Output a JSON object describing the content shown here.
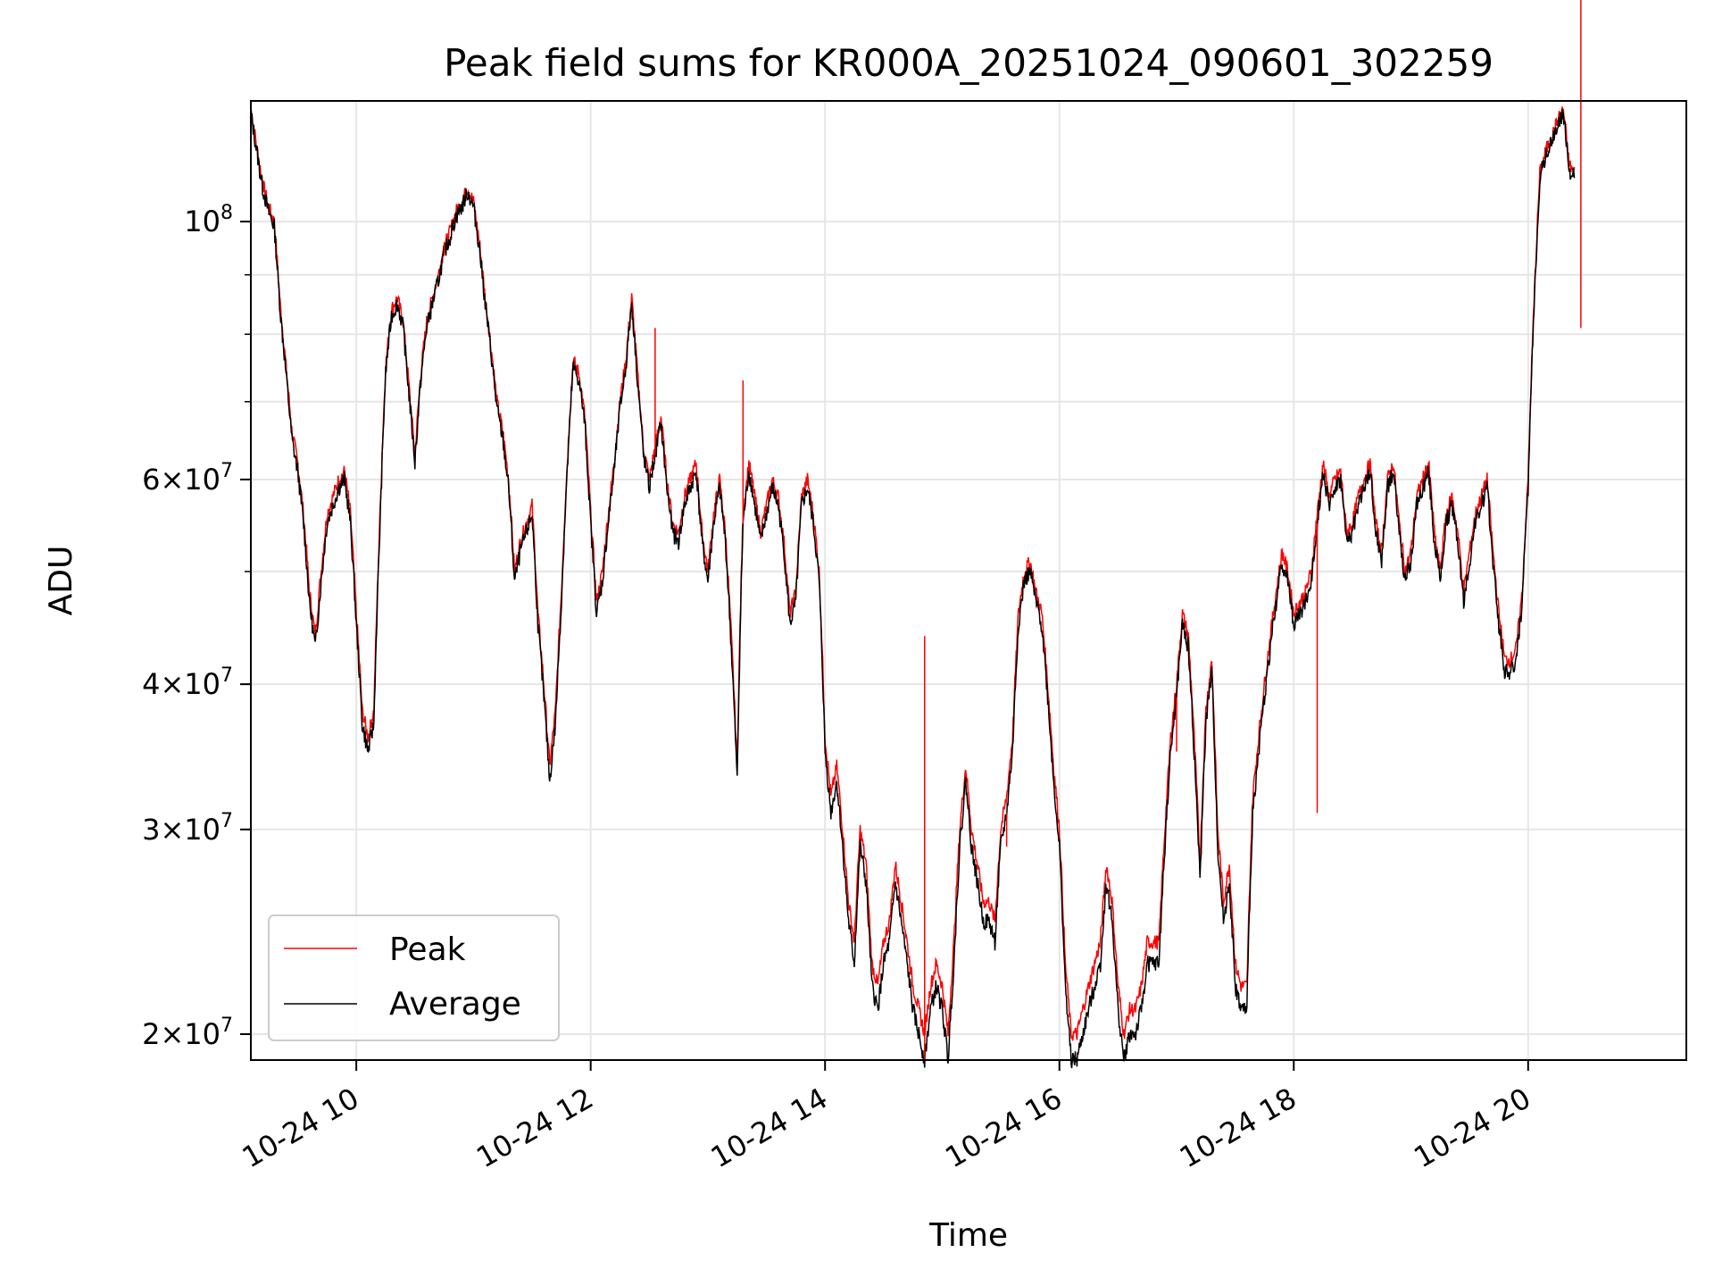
{
  "chart_data": {
    "type": "line",
    "title": "Peak field sums for KR000A_20251024_090601_302259",
    "xlabel": "Time",
    "ylabel": "ADU",
    "yscale": "log",
    "xlim": [
      9.1,
      21.35
    ],
    "ylim": [
      19000000,
      127000000
    ],
    "grid": true,
    "legend_position": "lower-left",
    "x_ticks": [
      {
        "value": 10,
        "label": "10-24 10"
      },
      {
        "value": 12,
        "label": "10-24 12"
      },
      {
        "value": 14,
        "label": "10-24 14"
      },
      {
        "value": 16,
        "label": "10-24 16"
      },
      {
        "value": 18,
        "label": "10-24 18"
      },
      {
        "value": 20,
        "label": "10-24 20"
      }
    ],
    "y_major_ticks": [
      {
        "value": 20000000,
        "base": "2",
        "exp": "7"
      },
      {
        "value": 30000000,
        "base": "3",
        "exp": "7"
      },
      {
        "value": 40000000,
        "base": "4",
        "exp": "7"
      },
      {
        "value": 60000000,
        "base": "6",
        "exp": "7"
      },
      {
        "value": 100000000,
        "base": "",
        "exp": "8"
      }
    ],
    "y_minor_ticks": [
      50000000,
      70000000,
      80000000,
      90000000
    ],
    "series": [
      {
        "name": "Peak",
        "color": "#ff0000"
      },
      {
        "name": "Average",
        "color": "#000000"
      }
    ],
    "x": [
      9.1,
      9.15,
      9.2,
      9.25,
      9.3,
      9.35,
      9.4,
      9.45,
      9.5,
      9.55,
      9.6,
      9.65,
      9.7,
      9.75,
      9.8,
      9.85,
      9.9,
      9.95,
      10.0,
      10.05,
      10.1,
      10.15,
      10.2,
      10.25,
      10.3,
      10.35,
      10.4,
      10.45,
      10.5,
      10.55,
      10.6,
      10.65,
      10.7,
      10.75,
      10.8,
      10.85,
      10.9,
      10.95,
      11.0,
      11.05,
      11.1,
      11.15,
      11.2,
      11.25,
      11.3,
      11.35,
      11.4,
      11.45,
      11.5,
      11.55,
      11.6,
      11.65,
      11.7,
      11.75,
      11.8,
      11.85,
      11.9,
      11.95,
      12.0,
      12.05,
      12.1,
      12.15,
      12.2,
      12.25,
      12.3,
      12.35,
      12.4,
      12.45,
      12.5,
      12.55,
      12.6,
      12.65,
      12.7,
      12.75,
      12.8,
      12.85,
      12.9,
      12.95,
      13.0,
      13.05,
      13.1,
      13.15,
      13.2,
      13.25,
      13.3,
      13.35,
      13.4,
      13.45,
      13.5,
      13.55,
      13.6,
      13.65,
      13.7,
      13.75,
      13.8,
      13.85,
      13.9,
      13.95,
      14.0,
      14.05,
      14.1,
      14.15,
      14.2,
      14.25,
      14.3,
      14.35,
      14.4,
      14.45,
      14.5,
      14.55,
      14.6,
      14.65,
      14.7,
      14.75,
      14.8,
      14.85,
      14.9,
      14.95,
      15.0,
      15.05,
      15.1,
      15.15,
      15.2,
      15.25,
      15.3,
      15.35,
      15.4,
      15.45,
      15.5,
      15.55,
      15.6,
      15.65,
      15.7,
      15.75,
      15.8,
      15.85,
      15.9,
      15.95,
      16.0,
      16.05,
      16.1,
      16.15,
      16.2,
      16.25,
      16.3,
      16.35,
      16.4,
      16.45,
      16.5,
      16.55,
      16.6,
      16.65,
      16.7,
      16.75,
      16.8,
      16.85,
      16.9,
      16.95,
      17.0,
      17.05,
      17.1,
      17.15,
      17.2,
      17.25,
      17.3,
      17.35,
      17.4,
      17.45,
      17.5,
      17.55,
      17.6,
      17.65,
      17.7,
      17.75,
      17.8,
      17.85,
      17.9,
      17.95,
      18.0,
      18.05,
      18.1,
      18.15,
      18.2,
      18.25,
      18.3,
      18.35,
      18.4,
      18.45,
      18.5,
      18.55,
      18.6,
      18.65,
      18.7,
      18.75,
      18.8,
      18.85,
      18.9,
      18.95,
      19.0,
      19.05,
      19.1,
      19.15,
      19.2,
      19.25,
      19.3,
      19.35,
      19.4,
      19.45,
      19.5,
      19.55,
      19.6,
      19.65,
      19.7,
      19.75,
      19.8,
      19.85,
      19.9,
      19.95,
      20.0,
      20.05,
      20.1,
      20.15,
      20.2,
      20.25,
      20.3,
      20.35,
      20.4,
      20.45,
      20.5,
      20.55,
      20.6,
      20.65,
      20.7,
      20.75,
      20.8,
      20.85,
      20.9,
      20.95,
      21.0,
      21.05,
      21.1,
      21.15,
      21.2,
      21.25,
      21.3,
      21.35
    ],
    "peak": [
      125,
      116,
      108,
      103,
      100,
      85,
      75,
      66,
      62,
      56,
      48,
      44,
      50,
      56,
      58,
      60,
      61,
      56,
      46,
      38,
      36,
      38,
      55,
      75,
      84,
      86,
      82,
      72,
      63,
      74,
      82,
      86,
      90,
      95,
      98,
      102,
      104,
      107,
      104,
      96,
      86,
      78,
      70,
      66,
      60,
      50,
      53,
      55,
      57,
      46,
      40,
      34,
      38,
      48,
      62,
      76,
      74,
      68,
      56,
      47,
      50,
      56,
      62,
      70,
      76,
      86,
      74,
      64,
      60,
      64,
      68,
      60,
      55,
      54,
      58,
      60,
      62,
      54,
      50,
      56,
      60,
      54,
      44,
      34,
      56,
      62,
      58,
      54,
      57,
      60,
      58,
      53,
      46,
      48,
      58,
      60,
      56,
      50,
      36,
      32,
      34,
      30,
      26,
      24,
      30,
      28,
      23,
      22,
      24,
      25,
      28,
      26,
      24,
      22,
      21,
      20,
      22,
      23,
      22,
      20,
      24,
      30,
      34,
      30,
      28,
      26,
      26,
      25,
      30,
      32,
      36,
      46,
      50,
      51,
      48,
      46,
      40,
      34,
      30,
      23,
      20,
      20,
      21,
      22,
      23,
      24,
      28,
      26,
      22,
      20,
      21,
      21,
      22,
      24,
      24,
      24,
      30,
      36,
      40,
      46,
      44,
      36,
      28,
      38,
      42,
      30,
      26,
      28,
      23,
      22,
      22,
      32,
      36,
      40,
      44,
      48,
      52,
      50,
      46,
      47,
      48,
      50,
      56,
      62,
      58,
      60,
      61,
      54,
      55,
      58,
      60,
      62,
      55,
      52,
      60,
      62,
      55,
      50,
      52,
      58,
      60,
      62,
      54,
      50,
      56,
      58,
      54,
      48,
      52,
      56,
      58,
      60,
      52,
      46,
      42,
      42,
      43,
      48,
      60,
      85,
      110,
      115,
      118,
      122,
      125,
      112,
      110
    ],
    "average": [
      124,
      115,
      107,
      102,
      99,
      84,
      74,
      65,
      61,
      55,
      47,
      43,
      49,
      55,
      57,
      59,
      60,
      55,
      45,
      37,
      35,
      37,
      54,
      74,
      83,
      85,
      81,
      71,
      62,
      73,
      81,
      85,
      89,
      94,
      97,
      101,
      103,
      106,
      103,
      95,
      85,
      77,
      69,
      65,
      59,
      49,
      52,
      54,
      56,
      45,
      39,
      33,
      37,
      47,
      61,
      75,
      73,
      67,
      55,
      46,
      49,
      55,
      61,
      69,
      75,
      85,
      73,
      63,
      59,
      63,
      67,
      59,
      54,
      53,
      57,
      59,
      61,
      53,
      49,
      55,
      59,
      53,
      43,
      33,
      55,
      61,
      57,
      53,
      56,
      59,
      57,
      52,
      45,
      47,
      57,
      59,
      55,
      49,
      35,
      31,
      33,
      29,
      25,
      23,
      29,
      27,
      22,
      21,
      23,
      24,
      27,
      25,
      23,
      21,
      20,
      19,
      21,
      22,
      21,
      19,
      23,
      29,
      33,
      29,
      27,
      25,
      25,
      24,
      29,
      31,
      35,
      45,
      49,
      50,
      47,
      45,
      39,
      33,
      29,
      22,
      19,
      19,
      20,
      21,
      22,
      23,
      27,
      25,
      21,
      19,
      20,
      20,
      21,
      23,
      23,
      23,
      29,
      35,
      39,
      45,
      43,
      35,
      27,
      37,
      41,
      29,
      25,
      27,
      22,
      21,
      21,
      31,
      35,
      39,
      43,
      47,
      51,
      49,
      45,
      46,
      47,
      49,
      55,
      61,
      57,
      59,
      60,
      53,
      54,
      57,
      59,
      61,
      54,
      51,
      59,
      61,
      54,
      49,
      51,
      57,
      59,
      61,
      53,
      49,
      55,
      57,
      53,
      47,
      51,
      55,
      57,
      59,
      51,
      45,
      41,
      41,
      42,
      47,
      59,
      84,
      109,
      114,
      117,
      121,
      124,
      111,
      109
    ],
    "spikes": [
      {
        "x": 10.75,
        "value": 96
      },
      {
        "x": 12.55,
        "value": 81
      },
      {
        "x": 13.3,
        "value": 73
      },
      {
        "x": 14.85,
        "value": 44
      },
      {
        "x": 15.55,
        "value": 29
      },
      {
        "x": 17.0,
        "value": 35
      },
      {
        "x": 18.2,
        "value": 31
      },
      {
        "x": 20.45,
        "value": 81
      }
    ]
  }
}
